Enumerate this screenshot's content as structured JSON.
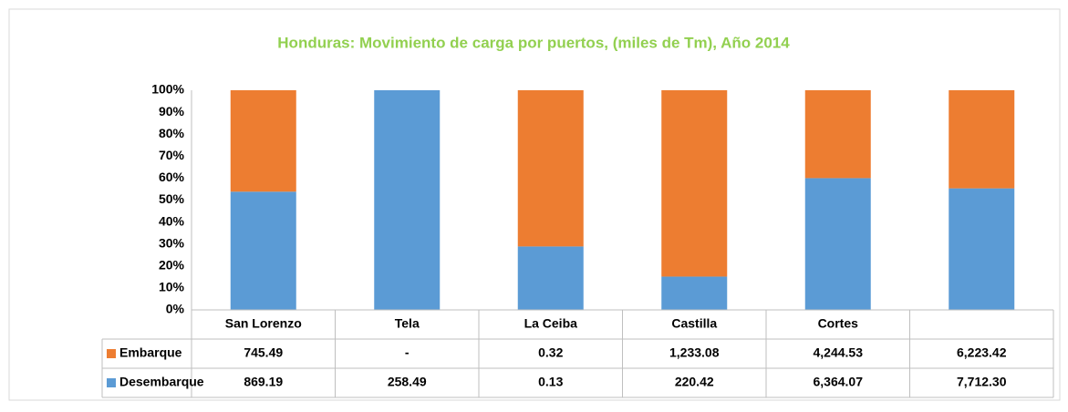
{
  "chart_data": {
    "type": "stacked_bar_100",
    "title": "Honduras:  Movimiento de carga por puertos, (miles de Tm), Año 2014",
    "categories": [
      "San Lorenzo",
      "Tela",
      "La Ceiba",
      "Castilla",
      "Cortes",
      null
    ],
    "series": [
      {
        "name": "Embarque",
        "color": "#ed7d31",
        "values": [
          745.49,
          null,
          0.32,
          1233.08,
          4244.53,
          6223.42
        ],
        "value_labels": [
          "745.49",
          "-",
          "0.32",
          "1,233.08",
          "4,244.53",
          "6,223.42"
        ]
      },
      {
        "name": "Desembarque",
        "color": "#5b9bd5",
        "values": [
          869.19,
          258.49,
          0.13,
          220.42,
          6364.07,
          7712.3
        ],
        "value_labels": [
          "869.19",
          "258.49",
          "0.13",
          "220.42",
          "6,364.07",
          "7,712.30"
        ]
      }
    ],
    "ylim": [
      0,
      100
    ],
    "yticks": [
      {
        "value": 0,
        "label": "0%"
      },
      {
        "value": 10,
        "label": "10%"
      },
      {
        "value": 20,
        "label": "20%"
      },
      {
        "value": 30,
        "label": "30%"
      },
      {
        "value": 40,
        "label": "40%"
      },
      {
        "value": 50,
        "label": "50%"
      },
      {
        "value": 60,
        "label": "60%"
      },
      {
        "value": 70,
        "label": "70%"
      },
      {
        "value": 80,
        "label": "80%"
      },
      {
        "value": 90,
        "label": "90%"
      },
      {
        "value": 100,
        "label": "100%"
      }
    ],
    "grid": false
  }
}
